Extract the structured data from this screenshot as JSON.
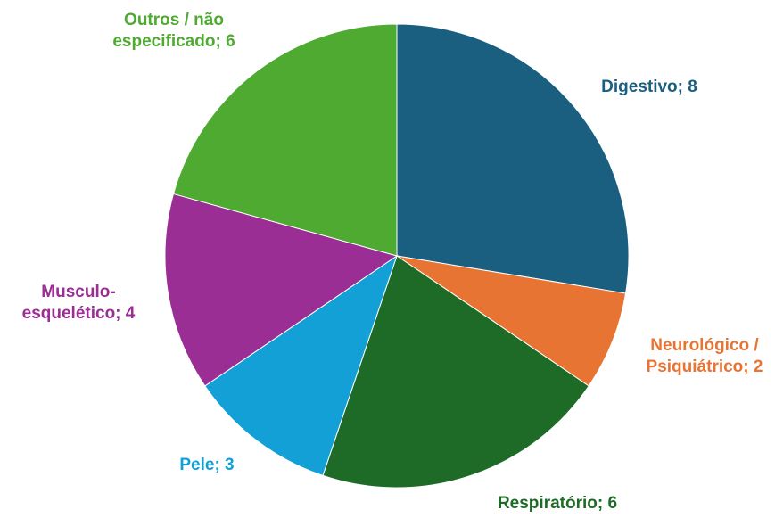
{
  "chart_data": {
    "type": "pie",
    "labels": [
      "Digestivo; 8",
      "Neurológico /\nPsiquiátrico; 2",
      "Respiratório; 6",
      "Pele; 3",
      "Musculo-\nesquelético; 4",
      "Outros / não\nespecificado; 6"
    ],
    "values": [
      8,
      2,
      6,
      3,
      4,
      6
    ],
    "colors": [
      "#1a5f80",
      "#e87434",
      "#1d6b26",
      "#12a0d7",
      "#9b2e94",
      "#4faa31"
    ]
  }
}
